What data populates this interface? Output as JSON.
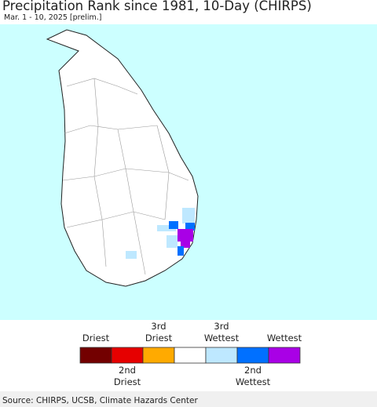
{
  "header": {
    "title": "Precipitation Rank since 1981, 10-Day (CHIRPS)",
    "subtitle": "Mar. 1 - 10, 2025 [prelim.]"
  },
  "legend": {
    "colors": [
      "#730000",
      "#e60000",
      "#ffaa00",
      "#ffffff",
      "#bee8ff",
      "#0070ff",
      "#a900e6"
    ],
    "labels_top": [
      [
        "Driest"
      ],
      [
        "3rd",
        "Driest"
      ],
      [
        "3rd",
        "Wettest"
      ],
      [
        "Wettest"
      ]
    ],
    "labels_bottom": [
      [
        "2nd",
        "Driest"
      ],
      [
        "2nd",
        "Wettest"
      ]
    ]
  },
  "footer": {
    "source": "Source: CHIRPS, UCSB, Climate Hazards Center"
  }
}
